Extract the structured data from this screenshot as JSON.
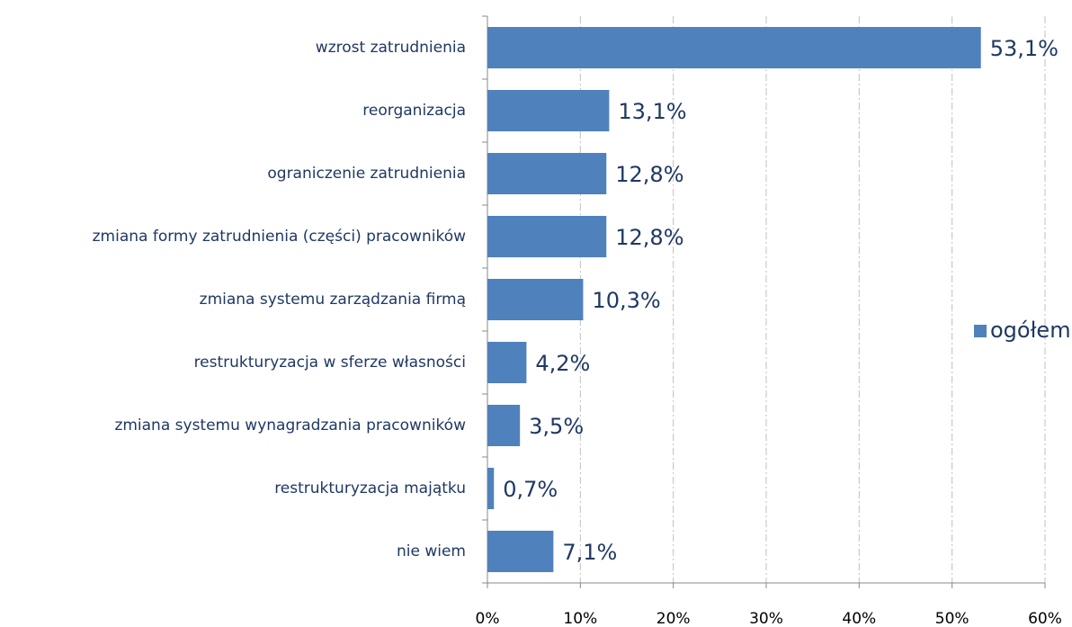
{
  "chart_data": {
    "type": "bar",
    "orientation": "horizontal",
    "categories": [
      "wzrost zatrudnienia",
      "reorganizacja",
      "ograniczenie zatrudnienia",
      "zmiana formy zatrudnienia (części) pracowników",
      "zmiana systemu zarządzania firmą",
      "restrukturyzacja w sferze własności",
      "zmiana systemu wynagradzania pracowników",
      "restrukturyzacja majątku",
      "nie wiem"
    ],
    "series": [
      {
        "name": "ogółem",
        "color": "#4f81bd",
        "values": [
          53.1,
          13.1,
          12.8,
          12.8,
          10.3,
          4.2,
          3.5,
          0.7,
          7.1
        ],
        "value_labels": [
          "53,1%",
          "13,1%",
          "12,8%",
          "12,8%",
          "10,3%",
          "4,2%",
          "3,5%",
          "0,7%",
          "7,1%"
        ]
      }
    ],
    "xlim": [
      0,
      60
    ],
    "xticks": [
      {
        "value": 0,
        "label": "0%"
      },
      {
        "value": 10,
        "label": "10%"
      },
      {
        "value": 20,
        "label": "20%"
      },
      {
        "value": 30,
        "label": "30%"
      },
      {
        "value": 40,
        "label": "40%"
      },
      {
        "value": 50,
        "label": "50%"
      },
      {
        "value": 60,
        "label": "60%"
      }
    ],
    "grid": true,
    "legend": "right"
  }
}
